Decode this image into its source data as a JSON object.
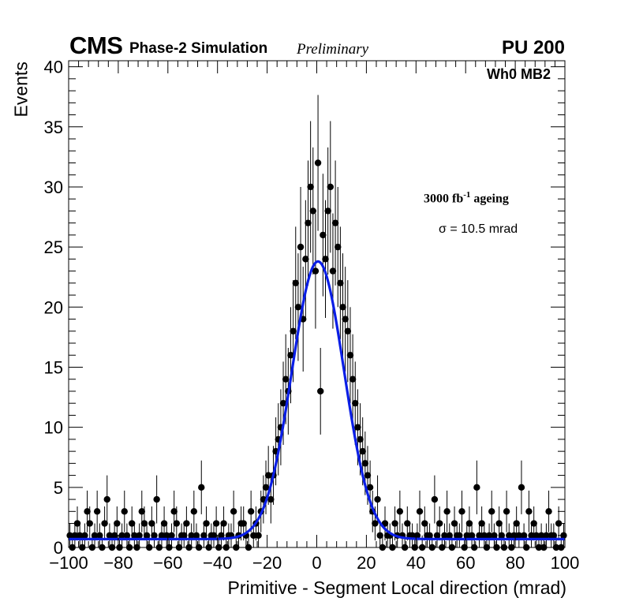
{
  "header": {
    "experiment": "CMS",
    "simulation": "Phase-2 Simulation",
    "status": "Preliminary",
    "pileup": "PU 200"
  },
  "annotations": {
    "chamber": "Wh0 MB2",
    "ageing_value": "3000 fb",
    "ageing_exp": "-1",
    "ageing_word": " ageing",
    "sigma_text": "σ = 10.5 mrad"
  },
  "colors": {
    "fit": "#0a1ee6",
    "markers": "#000000"
  },
  "chart_data": {
    "type": "scatter",
    "title": "",
    "xlabel": "Primitive - Segment Local direction (mrad)",
    "ylabel": "Events",
    "xlim": [
      -100,
      100
    ],
    "ylim": [
      0,
      40.5
    ],
    "x_ticks": [
      -100,
      -80,
      -60,
      -40,
      -20,
      0,
      20,
      40,
      60,
      80,
      100
    ],
    "x_tick_labels": [
      "−100",
      "−80",
      "−60",
      "−40",
      "−20",
      "0",
      "20",
      "40",
      "60",
      "80",
      "100"
    ],
    "y_ticks": [
      0,
      5,
      10,
      15,
      20,
      25,
      30,
      35,
      40
    ],
    "y_tick_labels": [
      "0",
      "5",
      "10",
      "15",
      "20",
      "25",
      "30",
      "35",
      "40"
    ],
    "bin_width": 1,
    "series": [
      {
        "name": "Data",
        "style": "markers with Poisson error bars",
        "x": [
          -99.5,
          -98.5,
          -97.5,
          -96.5,
          -95.5,
          -94.5,
          -93.5,
          -92.5,
          -91.5,
          -90.5,
          -89.5,
          -88.5,
          -87.5,
          -86.5,
          -85.5,
          -84.5,
          -83.5,
          -82.5,
          -81.5,
          -80.5,
          -79.5,
          -78.5,
          -77.5,
          -76.5,
          -75.5,
          -74.5,
          -73.5,
          -72.5,
          -71.5,
          -70.5,
          -69.5,
          -68.5,
          -67.5,
          -66.5,
          -65.5,
          -64.5,
          -63.5,
          -62.5,
          -61.5,
          -60.5,
          -59.5,
          -58.5,
          -57.5,
          -56.5,
          -55.5,
          -54.5,
          -53.5,
          -52.5,
          -51.5,
          -50.5,
          -49.5,
          -48.5,
          -47.5,
          -46.5,
          -45.5,
          -44.5,
          -43.5,
          -42.5,
          -41.5,
          -40.5,
          -39.5,
          -38.5,
          -37.5,
          -36.5,
          -35.5,
          -34.5,
          -33.5,
          -32.5,
          -31.5,
          -30.5,
          -29.5,
          -28.5,
          -27.5,
          -26.5,
          -25.5,
          -24.5,
          -23.5,
          -22.5,
          -21.5,
          -20.5,
          -19.5,
          -18.5,
          -17.5,
          -16.5,
          -15.5,
          -14.5,
          -13.5,
          -12.5,
          -11.5,
          -10.5,
          -9.5,
          -8.5,
          -7.5,
          -6.5,
          -5.5,
          -4.5,
          -3.5,
          -2.5,
          -1.5,
          -0.5,
          0.5,
          1.5,
          2.5,
          3.5,
          4.5,
          5.5,
          6.5,
          7.5,
          8.5,
          9.5,
          10.5,
          11.5,
          12.5,
          13.5,
          14.5,
          15.5,
          16.5,
          17.5,
          18.5,
          19.5,
          20.5,
          21.5,
          22.5,
          23.5,
          24.5,
          25.5,
          26.5,
          27.5,
          28.5,
          29.5,
          30.5,
          31.5,
          32.5,
          33.5,
          34.5,
          35.5,
          36.5,
          37.5,
          38.5,
          39.5,
          40.5,
          41.5,
          42.5,
          43.5,
          44.5,
          45.5,
          46.5,
          47.5,
          48.5,
          49.5,
          50.5,
          51.5,
          52.5,
          53.5,
          54.5,
          55.5,
          56.5,
          57.5,
          58.5,
          59.5,
          60.5,
          61.5,
          62.5,
          63.5,
          64.5,
          65.5,
          66.5,
          67.5,
          68.5,
          69.5,
          70.5,
          71.5,
          72.5,
          73.5,
          74.5,
          75.5,
          76.5,
          77.5,
          78.5,
          79.5,
          80.5,
          81.5,
          82.5,
          83.5,
          84.5,
          85.5,
          86.5,
          87.5,
          88.5,
          89.5,
          90.5,
          91.5,
          92.5,
          93.5,
          94.5,
          95.5,
          96.5,
          97.5,
          98.5,
          99.5
        ],
        "y": [
          1,
          0,
          1,
          2,
          1,
          0,
          1,
          3,
          2,
          0,
          1,
          3,
          1,
          0,
          2,
          4,
          1,
          0,
          1,
          2,
          0,
          1,
          3,
          1,
          0,
          2,
          1,
          0,
          1,
          3,
          2,
          1,
          0,
          2,
          1,
          4,
          0,
          1,
          2,
          1,
          0,
          1,
          3,
          2,
          0,
          1,
          1,
          2,
          0,
          1,
          3,
          1,
          0,
          5,
          1,
          2,
          0,
          1,
          1,
          2,
          0,
          1,
          2,
          0,
          1,
          1,
          3,
          0,
          1,
          2,
          2,
          1,
          0,
          3,
          1,
          2,
          1,
          3,
          4,
          5,
          6,
          4,
          6,
          8,
          9,
          10,
          12,
          14,
          13,
          16,
          18,
          22,
          20,
          25,
          19,
          24,
          27,
          30,
          28,
          23,
          32,
          13,
          26,
          24,
          28,
          30,
          23,
          27,
          25,
          22,
          20,
          19,
          18,
          16,
          14,
          12,
          10,
          9,
          8,
          7,
          6,
          5,
          3,
          2,
          4,
          1,
          0,
          2,
          1,
          1,
          0,
          2,
          1,
          3,
          1,
          0,
          2,
          1,
          1,
          0,
          1,
          3,
          0,
          2,
          1,
          1,
          0,
          4,
          1,
          2,
          0,
          1,
          3,
          1,
          0,
          2,
          1,
          1,
          3,
          0,
          1,
          2,
          1,
          0,
          5,
          1,
          2,
          1,
          0,
          1,
          3,
          1,
          0,
          2,
          1,
          0,
          3,
          1,
          0,
          1,
          2,
          1,
          5,
          1,
          0,
          3,
          1,
          2,
          1,
          0,
          1,
          0,
          1,
          3,
          1,
          1,
          0,
          2,
          0,
          1
        ]
      },
      {
        "name": "Gaussian fit",
        "style": "line",
        "mean": 0.5,
        "sigma": 10.5,
        "amplitude": 23.1,
        "baseline": 0.7
      }
    ]
  }
}
